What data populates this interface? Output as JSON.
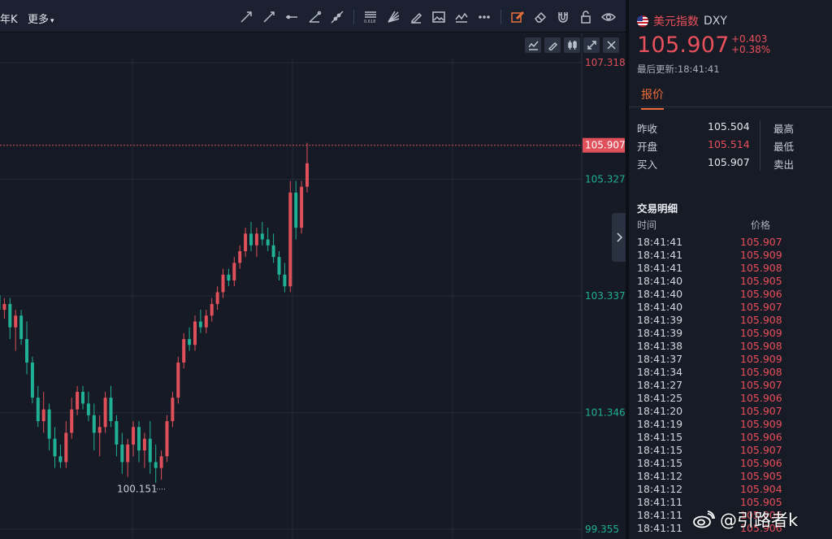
{
  "toolbar": {
    "period_label": "年K",
    "more_label": "更多",
    "tools": [
      "ray-line-icon",
      "arrow-line-icon",
      "horizontal-line-icon",
      "trend-angle-icon",
      "extended-line-icon",
      "fibonacci-icon",
      "fan-icon",
      "pen-icon",
      "image-icon",
      "wave-icon",
      "more-dots-icon",
      "edit-active-icon",
      "eraser-icon",
      "magnet-icon",
      "lock-icon",
      "eye-icon",
      "trash-icon"
    ],
    "fib_label": "0.618"
  },
  "chart": {
    "y_labels": [
      "107.318",
      "105.327",
      "103.337",
      "101.346",
      "99.355"
    ],
    "current_price_tag": "105.907",
    "low_label": "100.151",
    "colors": {
      "up": "#e0505b",
      "down": "#20b096",
      "grid": "#232a37",
      "price_line": "#e0505b"
    }
  },
  "chart_data": {
    "type": "candlestick",
    "ylim": [
      99.355,
      107.318
    ],
    "y_ticks": [
      107.318,
      105.327,
      103.337,
      101.346,
      99.355
    ],
    "last_price": 105.907,
    "marked_low": 100.151,
    "candles": [
      {
        "o": 103.35,
        "h": 103.6,
        "l": 102.9,
        "c": 103.1
      },
      {
        "o": 103.1,
        "h": 103.3,
        "l": 102.95,
        "c": 103.2
      },
      {
        "o": 103.2,
        "h": 103.3,
        "l": 102.6,
        "c": 102.8
      },
      {
        "o": 102.8,
        "h": 103.1,
        "l": 102.4,
        "c": 103.0
      },
      {
        "o": 103.0,
        "h": 103.1,
        "l": 102.5,
        "c": 102.6
      },
      {
        "o": 102.6,
        "h": 102.9,
        "l": 102.0,
        "c": 102.2
      },
      {
        "o": 102.2,
        "h": 102.3,
        "l": 101.5,
        "c": 101.6
      },
      {
        "o": 101.6,
        "h": 101.8,
        "l": 101.1,
        "c": 101.2
      },
      {
        "o": 101.2,
        "h": 101.7,
        "l": 101.0,
        "c": 101.4
      },
      {
        "o": 101.4,
        "h": 101.5,
        "l": 100.7,
        "c": 100.9
      },
      {
        "o": 100.9,
        "h": 101.1,
        "l": 100.4,
        "c": 100.6
      },
      {
        "o": 100.6,
        "h": 100.8,
        "l": 100.4,
        "c": 100.5
      },
      {
        "o": 100.5,
        "h": 101.2,
        "l": 100.4,
        "c": 101.0
      },
      {
        "o": 101.0,
        "h": 101.6,
        "l": 100.9,
        "c": 101.4
      },
      {
        "o": 101.4,
        "h": 101.8,
        "l": 101.3,
        "c": 101.7
      },
      {
        "o": 101.7,
        "h": 101.8,
        "l": 101.4,
        "c": 101.5
      },
      {
        "o": 101.5,
        "h": 101.7,
        "l": 101.2,
        "c": 101.3
      },
      {
        "o": 101.3,
        "h": 101.5,
        "l": 100.7,
        "c": 101.0
      },
      {
        "o": 101.0,
        "h": 101.3,
        "l": 100.6,
        "c": 101.1
      },
      {
        "o": 101.1,
        "h": 101.7,
        "l": 101.0,
        "c": 101.6
      },
      {
        "o": 101.6,
        "h": 101.8,
        "l": 101.1,
        "c": 101.2
      },
      {
        "o": 101.2,
        "h": 101.3,
        "l": 100.6,
        "c": 100.8
      },
      {
        "o": 100.8,
        "h": 101.0,
        "l": 100.3,
        "c": 100.5
      },
      {
        "o": 100.5,
        "h": 100.9,
        "l": 100.25,
        "c": 100.8
      },
      {
        "o": 100.8,
        "h": 101.2,
        "l": 100.6,
        "c": 101.1
      },
      {
        "o": 101.1,
        "h": 101.2,
        "l": 100.5,
        "c": 100.7
      },
      {
        "o": 100.7,
        "h": 101.0,
        "l": 100.4,
        "c": 100.9
      },
      {
        "o": 100.9,
        "h": 101.2,
        "l": 100.3,
        "c": 100.5
      },
      {
        "o": 100.5,
        "h": 100.8,
        "l": 100.15,
        "c": 100.4
      },
      {
        "o": 100.4,
        "h": 100.7,
        "l": 100.2,
        "c": 100.6
      },
      {
        "o": 100.6,
        "h": 101.3,
        "l": 100.5,
        "c": 101.2
      },
      {
        "o": 101.2,
        "h": 101.7,
        "l": 101.1,
        "c": 101.6
      },
      {
        "o": 101.6,
        "h": 102.3,
        "l": 101.5,
        "c": 102.2
      },
      {
        "o": 102.2,
        "h": 102.7,
        "l": 102.1,
        "c": 102.6
      },
      {
        "o": 102.6,
        "h": 102.8,
        "l": 102.4,
        "c": 102.5
      },
      {
        "o": 102.5,
        "h": 103.0,
        "l": 102.4,
        "c": 102.9
      },
      {
        "o": 102.9,
        "h": 103.1,
        "l": 102.7,
        "c": 102.8
      },
      {
        "o": 102.8,
        "h": 103.1,
        "l": 102.7,
        "c": 103.0
      },
      {
        "o": 103.0,
        "h": 103.3,
        "l": 102.9,
        "c": 103.2
      },
      {
        "o": 103.2,
        "h": 103.5,
        "l": 103.1,
        "c": 103.4
      },
      {
        "o": 103.4,
        "h": 103.8,
        "l": 103.3,
        "c": 103.7
      },
      {
        "o": 103.7,
        "h": 103.8,
        "l": 103.5,
        "c": 103.6
      },
      {
        "o": 103.6,
        "h": 104.0,
        "l": 103.5,
        "c": 103.9
      },
      {
        "o": 103.9,
        "h": 104.2,
        "l": 103.8,
        "c": 104.1
      },
      {
        "o": 104.1,
        "h": 104.5,
        "l": 104.0,
        "c": 104.4
      },
      {
        "o": 104.4,
        "h": 104.6,
        "l": 104.1,
        "c": 104.2
      },
      {
        "o": 104.2,
        "h": 104.5,
        "l": 104.0,
        "c": 104.4
      },
      {
        "o": 104.4,
        "h": 104.6,
        "l": 104.2,
        "c": 104.3
      },
      {
        "o": 104.3,
        "h": 104.5,
        "l": 104.1,
        "c": 104.2
      },
      {
        "o": 104.2,
        "h": 104.4,
        "l": 103.9,
        "c": 104.0
      },
      {
        "o": 104.0,
        "h": 104.1,
        "l": 103.6,
        "c": 103.7
      },
      {
        "o": 103.7,
        "h": 103.9,
        "l": 103.4,
        "c": 103.5
      },
      {
        "o": 103.5,
        "h": 105.3,
        "l": 103.4,
        "c": 105.1
      },
      {
        "o": 105.1,
        "h": 105.3,
        "l": 104.3,
        "c": 104.5
      },
      {
        "o": 104.5,
        "h": 105.3,
        "l": 104.4,
        "c": 105.2
      },
      {
        "o": 105.2,
        "h": 105.95,
        "l": 105.1,
        "c": 105.6
      }
    ]
  },
  "panel": {
    "symbol_name": "美元指数",
    "symbol_code": "DXY",
    "price": "105.907",
    "change": "+0.403",
    "change_pct": "+0.38%",
    "update_label": "最后更新:18:41:41",
    "tab_label": "报价",
    "quote_rows": [
      {
        "label": "昨收",
        "value": "105.504",
        "right_label": "最高"
      },
      {
        "label": "开盘",
        "value": "105.514",
        "right_label": "最低"
      },
      {
        "label": "买入",
        "value": "105.907",
        "right_label": "卖出"
      }
    ],
    "trades_title": "交易明细",
    "col_time": "时间",
    "col_price": "价格",
    "trades": [
      {
        "time": "18:41:41",
        "price": "105.907"
      },
      {
        "time": "18:41:41",
        "price": "105.909"
      },
      {
        "time": "18:41:41",
        "price": "105.908"
      },
      {
        "time": "18:41:40",
        "price": "105.905"
      },
      {
        "time": "18:41:40",
        "price": "105.906"
      },
      {
        "time": "18:41:40",
        "price": "105.907"
      },
      {
        "time": "18:41:39",
        "price": "105.908"
      },
      {
        "time": "18:41:39",
        "price": "105.909"
      },
      {
        "time": "18:41:38",
        "price": "105.908"
      },
      {
        "time": "18:41:37",
        "price": "105.909"
      },
      {
        "time": "18:41:34",
        "price": "105.908"
      },
      {
        "time": "18:41:27",
        "price": "105.907"
      },
      {
        "time": "18:41:25",
        "price": "105.906"
      },
      {
        "time": "18:41:20",
        "price": "105.907"
      },
      {
        "time": "18:41:19",
        "price": "105.909"
      },
      {
        "time": "18:41:15",
        "price": "105.906"
      },
      {
        "time": "18:41:15",
        "price": "105.907"
      },
      {
        "time": "18:41:15",
        "price": "105.906"
      },
      {
        "time": "18:41:12",
        "price": "105.905"
      },
      {
        "time": "18:41:12",
        "price": "105.904"
      },
      {
        "time": "18:41:11",
        "price": "105.905"
      },
      {
        "time": "18:41:11",
        "price": "105.906"
      },
      {
        "time": "18:41:11",
        "price": "105.906"
      }
    ]
  },
  "watermark": "@引路者k"
}
